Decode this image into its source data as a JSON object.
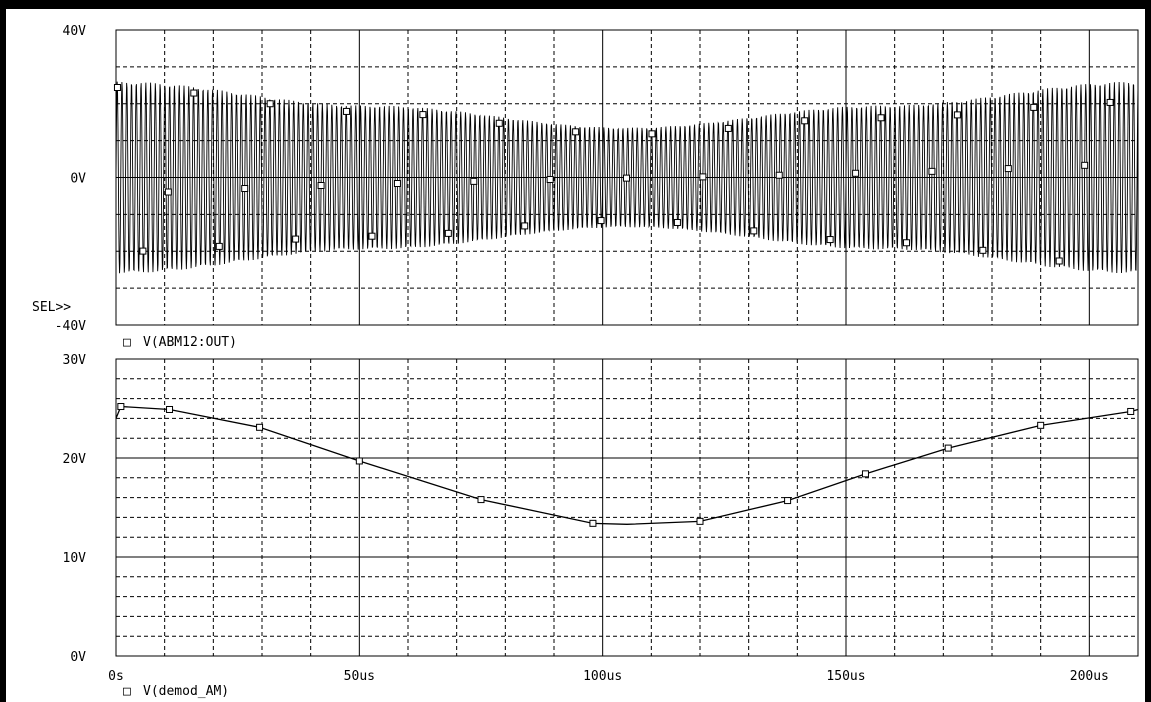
{
  "charts": [
    {
      "type": "line",
      "y_ticks": [
        {
          "value": 40,
          "label": "40V"
        },
        {
          "value": 0,
          "label": "0V"
        },
        {
          "value": -40,
          "label": "-40V"
        }
      ],
      "ylim": [
        -40,
        40
      ],
      "y_minor_step": 10,
      "sel_marker": "SEL>>",
      "legend": {
        "symbol": "□",
        "label": "V(ABM12:OUT)"
      },
      "series": [
        {
          "name": "V(ABM12:OUT)",
          "kind": "am_carrier",
          "envelope_x_us": [
            0,
            52.5,
            105,
            157.5,
            210
          ],
          "envelope_amplitude_v": [
            26,
            19.5,
            13.5,
            19.5,
            26
          ]
        }
      ]
    },
    {
      "type": "line",
      "y_ticks": [
        {
          "value": 30,
          "label": "30V"
        },
        {
          "value": 20,
          "label": "20V"
        },
        {
          "value": 10,
          "label": "10V"
        },
        {
          "value": 0,
          "label": "0V"
        }
      ],
      "ylim": [
        0,
        30
      ],
      "y_minor_step": 2,
      "legend": {
        "symbol": "□",
        "label": "V(demod_AM)"
      },
      "series": [
        {
          "name": "V(demod_AM)",
          "x_us": [
            0,
            1,
            11,
            29.5,
            50,
            75,
            98,
            105,
            120,
            138,
            154,
            171,
            190,
            208.5,
            210
          ],
          "y_v": [
            24,
            25.2,
            24.9,
            23.1,
            19.7,
            15.8,
            13.4,
            13.3,
            13.6,
            15.7,
            18.4,
            21.0,
            23.3,
            24.7,
            24.9
          ]
        }
      ]
    }
  ],
  "x_axis": {
    "xlim": [
      0,
      210
    ],
    "ticks": [
      {
        "value": 0,
        "label": "0s"
      },
      {
        "value": 50,
        "label": "50us"
      },
      {
        "value": 100,
        "label": "100us"
      },
      {
        "value": 150,
        "label": "150us"
      },
      {
        "value": 200,
        "label": "200us"
      }
    ],
    "minor_step": 10
  }
}
